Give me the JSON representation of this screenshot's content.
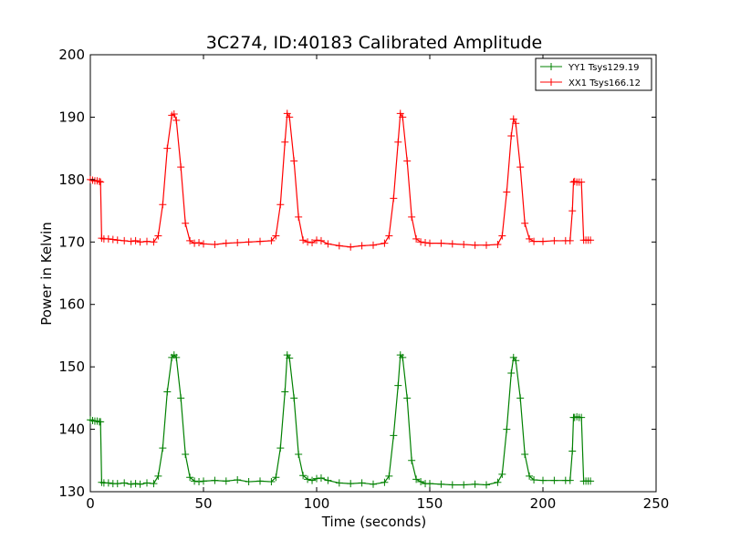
{
  "chart_data": {
    "type": "line",
    "title": "3C274, ID:40183 Calibrated Amplitude",
    "xlabel": "Time (seconds)",
    "ylabel": "Power in Kelvin",
    "xlim": [
      0,
      250
    ],
    "ylim": [
      130,
      200
    ],
    "xticks": [
      0,
      50,
      100,
      150,
      200,
      250
    ],
    "yticks": [
      130,
      140,
      150,
      160,
      170,
      180,
      190,
      200
    ],
    "grid": false,
    "legend_position": "top-right",
    "marker": "+",
    "series": [
      {
        "name": "YY1 Tsys129.19",
        "color": "#008000",
        "x": [
          0,
          1,
          2,
          3,
          4,
          4.5,
          5,
          6,
          8,
          10,
          12,
          15,
          18,
          20,
          22,
          25,
          28,
          30,
          32,
          34,
          36,
          37,
          38,
          40,
          42,
          44,
          46,
          48,
          50,
          55,
          60,
          65,
          70,
          75,
          80,
          82,
          84,
          86,
          87,
          88,
          90,
          92,
          94,
          96,
          98,
          100,
          102,
          105,
          110,
          115,
          120,
          125,
          130,
          132,
          134,
          136,
          137,
          138,
          140,
          142,
          144,
          146,
          148,
          150,
          155,
          160,
          165,
          170,
          175,
          180,
          182,
          184,
          186,
          187,
          188,
          190,
          192,
          194,
          196,
          200,
          205,
          210,
          212,
          213,
          213.5,
          214,
          215,
          216,
          217,
          218,
          219,
          220,
          221
        ],
        "values": [
          141.5,
          141.4,
          141.3,
          141.3,
          141.2,
          141.2,
          131.5,
          131.4,
          131.4,
          131.3,
          131.3,
          131.4,
          131.2,
          131.3,
          131.2,
          131.4,
          131.3,
          132.5,
          137,
          146,
          151.5,
          151.9,
          151.5,
          145,
          136,
          132.3,
          131.7,
          131.6,
          131.7,
          131.8,
          131.7,
          131.9,
          131.6,
          131.7,
          131.6,
          132.3,
          137,
          146,
          151.9,
          151.4,
          145,
          136,
          132.6,
          132,
          131.8,
          132.1,
          132.2,
          131.8,
          131.4,
          131.3,
          131.4,
          131.2,
          131.5,
          132.5,
          139,
          147,
          151.9,
          151.5,
          145,
          135,
          132,
          131.6,
          131.3,
          131.3,
          131.2,
          131.1,
          131.1,
          131.2,
          131.1,
          131.5,
          132.8,
          140,
          149,
          151.5,
          151,
          145,
          136,
          132.5,
          131.9,
          131.8,
          131.8,
          131.8,
          131.8,
          136.5,
          141.9,
          141.9,
          142,
          141.9,
          141.9,
          131.7,
          131.7,
          131.7,
          131.7
        ]
      },
      {
        "name": "XX1 Tsys166.12",
        "color": "#ff0000",
        "x": [
          0,
          1,
          2,
          3,
          4,
          4.5,
          5,
          6,
          8,
          10,
          12,
          15,
          18,
          20,
          22,
          25,
          28,
          30,
          32,
          34,
          36,
          37,
          38,
          40,
          42,
          44,
          46,
          48,
          50,
          55,
          60,
          65,
          70,
          75,
          80,
          82,
          84,
          86,
          87,
          88,
          90,
          92,
          94,
          96,
          98,
          100,
          102,
          105,
          110,
          115,
          120,
          125,
          130,
          132,
          134,
          136,
          137,
          138,
          140,
          142,
          144,
          146,
          148,
          150,
          155,
          160,
          165,
          170,
          175,
          180,
          182,
          184,
          186,
          187,
          188,
          190,
          192,
          194,
          196,
          200,
          205,
          210,
          212,
          213,
          213.5,
          214,
          215,
          216,
          217,
          218,
          219,
          220,
          221
        ],
        "values": [
          180,
          179.9,
          179.8,
          179.8,
          179.7,
          179.6,
          170.6,
          170.5,
          170.5,
          170.4,
          170.3,
          170.2,
          170.1,
          170.2,
          170,
          170.1,
          170,
          171,
          176,
          185,
          190.3,
          190.5,
          189.5,
          182,
          173,
          170.2,
          169.8,
          169.9,
          169.7,
          169.6,
          169.8,
          169.9,
          170,
          170.1,
          170.2,
          171,
          176,
          186,
          190.6,
          190,
          183,
          174,
          170.3,
          170,
          169.9,
          170.3,
          170.2,
          169.7,
          169.4,
          169.2,
          169.4,
          169.5,
          169.8,
          171,
          177,
          186,
          190.6,
          190,
          183,
          174,
          170.5,
          170,
          169.9,
          169.8,
          169.8,
          169.7,
          169.6,
          169.5,
          169.5,
          169.6,
          171,
          178,
          187,
          189.7,
          189,
          182,
          173,
          170.5,
          170.1,
          170.1,
          170.2,
          170.2,
          170.2,
          175,
          179.6,
          179.7,
          179.6,
          179.6,
          179.6,
          170.3,
          170.3,
          170.3,
          170.3
        ]
      }
    ]
  }
}
